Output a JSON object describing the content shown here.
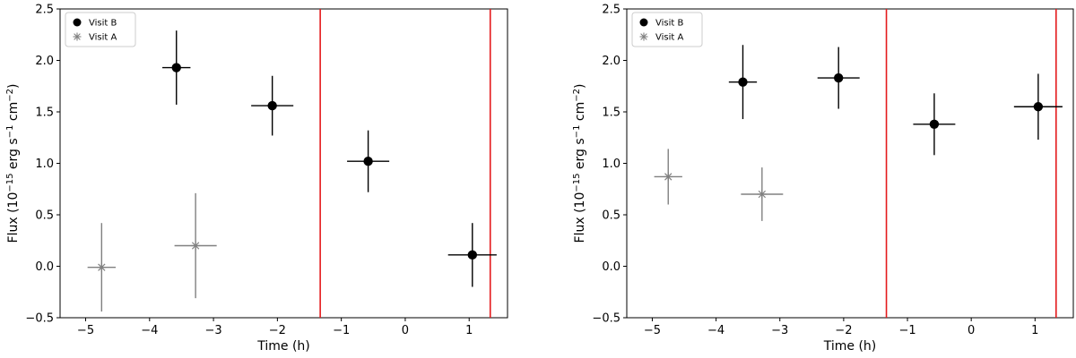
{
  "colors": {
    "visit_b": "#000000",
    "visit_a": "#808080",
    "markers": "#e41a1c",
    "axes": "#000000"
  },
  "chart_data": [
    {
      "type": "scatter",
      "xlabel": "Time (h)",
      "ylabel": "Flux (10^{-15} erg s^{-1} cm^{-2})",
      "xlim": [
        -5.4,
        1.6
      ],
      "ylim": [
        -0.5,
        2.5
      ],
      "xticks": [
        -5,
        -4,
        -3,
        -2,
        -1,
        0,
        1
      ],
      "yticks": [
        -0.5,
        0.0,
        0.5,
        1.0,
        1.5,
        2.0,
        2.5
      ],
      "xtick_labels": [
        "−5",
        "−4",
        "−3",
        "−2",
        "−1",
        "0",
        "1"
      ],
      "ytick_labels": [
        "−0.5",
        "0.0",
        "0.5",
        "1.0",
        "1.5",
        "2.0",
        "2.5"
      ],
      "vlines": [
        -1.33,
        1.33
      ],
      "legend": {
        "placement": "top-left",
        "entries": [
          "Visit B",
          "Visit A"
        ]
      },
      "series": [
        {
          "name": "Visit B",
          "marker": "circle",
          "points": [
            {
              "x": -3.58,
              "y": 1.93,
              "xerr": 0.22,
              "yerr": 0.36
            },
            {
              "x": -2.08,
              "y": 1.56,
              "xerr": 0.33,
              "yerr": 0.29
            },
            {
              "x": -0.58,
              "y": 1.02,
              "xerr": 0.33,
              "yerr": 0.3
            },
            {
              "x": 1.05,
              "y": 0.11,
              "xerr": 0.38,
              "yerr": 0.31
            }
          ]
        },
        {
          "name": "Visit A",
          "marker": "star",
          "points": [
            {
              "x": -4.75,
              "y": -0.01,
              "xerr": 0.22,
              "yerr": 0.43
            },
            {
              "x": -3.28,
              "y": 0.2,
              "xerr": 0.33,
              "yerr": 0.51
            }
          ]
        }
      ]
    },
    {
      "type": "scatter",
      "xlabel": "Time (h)",
      "ylabel": "Flux (10^{-15} erg s^{-1} cm^{-2})",
      "xlim": [
        -5.4,
        1.6
      ],
      "ylim": [
        -0.5,
        2.5
      ],
      "xticks": [
        -5,
        -4,
        -3,
        -2,
        -1,
        0,
        1
      ],
      "yticks": [
        -0.5,
        0.0,
        0.5,
        1.0,
        1.5,
        2.0,
        2.5
      ],
      "xtick_labels": [
        "−5",
        "−4",
        "−3",
        "−2",
        "−1",
        "0",
        "1"
      ],
      "ytick_labels": [
        "−0.5",
        "0.0",
        "0.5",
        "1.0",
        "1.5",
        "2.0",
        "2.5"
      ],
      "vlines": [
        -1.33,
        1.33
      ],
      "legend": {
        "placement": "top-left",
        "entries": [
          "Visit B",
          "Visit A"
        ]
      },
      "series": [
        {
          "name": "Visit B",
          "marker": "circle",
          "points": [
            {
              "x": -3.58,
              "y": 1.79,
              "xerr": 0.22,
              "yerr": 0.36
            },
            {
              "x": -2.08,
              "y": 1.83,
              "xerr": 0.33,
              "yerr": 0.3
            },
            {
              "x": -0.58,
              "y": 1.38,
              "xerr": 0.33,
              "yerr": 0.3
            },
            {
              "x": 1.05,
              "y": 1.55,
              "xerr": 0.38,
              "yerr": 0.32
            }
          ]
        },
        {
          "name": "Visit A",
          "marker": "star",
          "points": [
            {
              "x": -4.75,
              "y": 0.87,
              "xerr": 0.22,
              "yerr": 0.27
            },
            {
              "x": -3.28,
              "y": 0.7,
              "xerr": 0.33,
              "yerr": 0.26
            }
          ]
        }
      ]
    }
  ]
}
